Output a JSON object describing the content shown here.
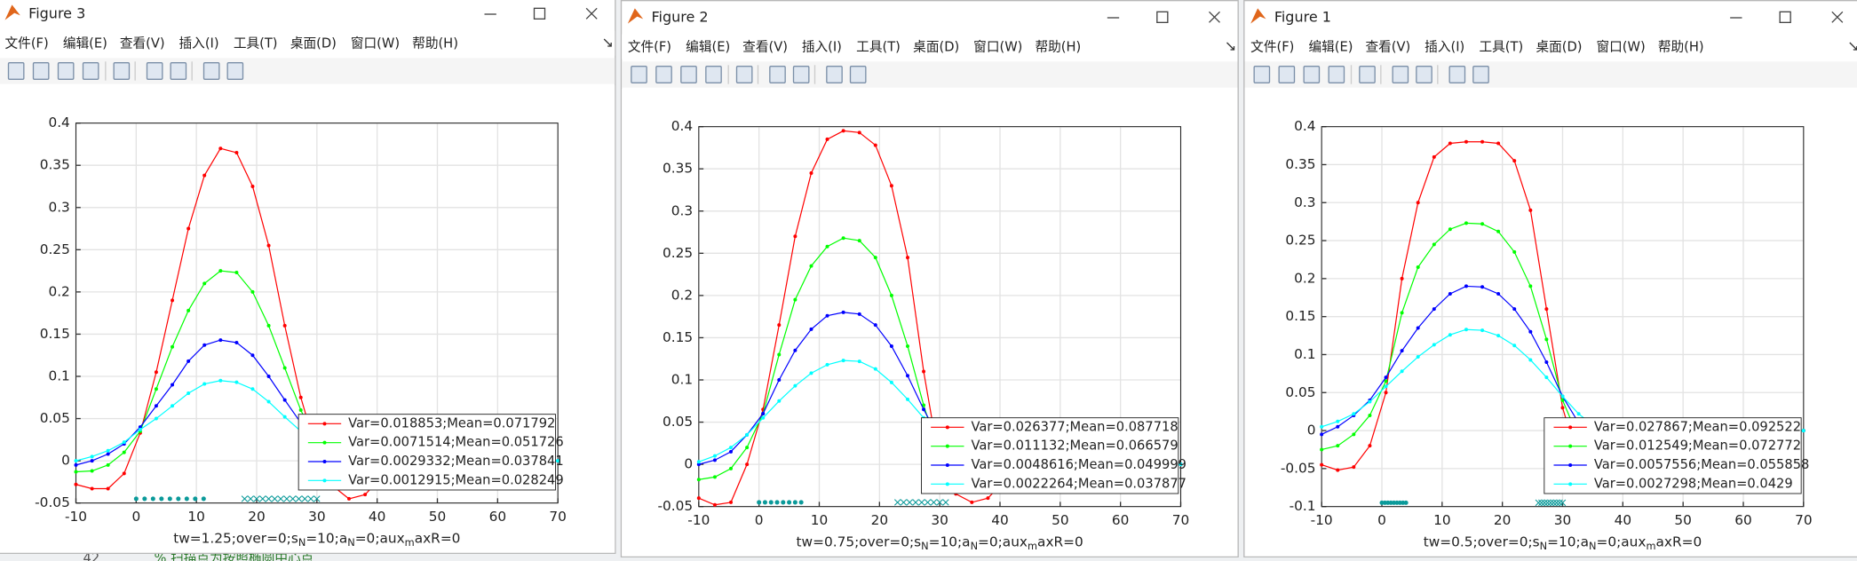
{
  "background": {
    "line_number": "42",
    "code": "% 扫描点为按照椭圆中心点"
  },
  "windows": [
    {
      "title": "Figure 3",
      "menu": [
        "文件(F)",
        "编辑(E)",
        "查看(V)",
        "插入(I)",
        "工具(T)",
        "桌面(D)",
        "窗口(W)",
        "帮助(H)"
      ]
    },
    {
      "title": "Figure 2",
      "menu": [
        "文件(F)",
        "编辑(E)",
        "查看(V)",
        "插入(I)",
        "工具(T)",
        "桌面(D)",
        "窗口(W)",
        "帮助(H)"
      ]
    },
    {
      "title": "Figure 1",
      "menu": [
        "文件(F)",
        "编辑(E)",
        "查看(V)",
        "插入(I)",
        "工具(T)",
        "桌面(D)",
        "窗口(W)",
        "帮助(H)"
      ]
    }
  ],
  "chart_data": [
    {
      "type": "line",
      "xlabel": [
        "tw=1.25;over=0;s",
        "N",
        "=10;a",
        "N",
        "=0;aux",
        "m",
        "axR=0"
      ],
      "xlim": [
        -10,
        70
      ],
      "ylim": [
        -0.05,
        0.4
      ],
      "xticks": [
        -10,
        0,
        10,
        20,
        30,
        40,
        50,
        60,
        70
      ],
      "yticks": [
        -0.05,
        0,
        0.05,
        0.1,
        0.15,
        0.2,
        0.25,
        0.3,
        0.35,
        0.4
      ],
      "grid": true,
      "legend": "lower right",
      "x": [
        -10,
        -7.33,
        -4.67,
        -2,
        0.67,
        3.33,
        6,
        8.67,
        11.33,
        14,
        16.67,
        19.33,
        22,
        24.67,
        27.33,
        30,
        32.67,
        35.33,
        38,
        40.67,
        43.33,
        46,
        48.67,
        51.33,
        54,
        56.67,
        59.33,
        62,
        64.67,
        67.33,
        70
      ],
      "series": [
        {
          "name": "Var=0.018853;Mean=0.071792",
          "color": "#ff0000",
          "marker": "point",
          "values": [
            -0.028,
            -0.033,
            -0.033,
            -0.015,
            0.033,
            0.105,
            0.19,
            0.275,
            0.338,
            0.37,
            0.365,
            0.325,
            0.255,
            0.16,
            0.075,
            0.01,
            -0.03,
            -0.045,
            -0.04,
            -0.02,
            0,
            0,
            0,
            0,
            0,
            0,
            0,
            0,
            0,
            0,
            0
          ]
        },
        {
          "name": "Var=0.0071514;Mean=0.051726",
          "color": "#00ff00",
          "marker": "point",
          "values": [
            -0.013,
            -0.012,
            -0.005,
            0.01,
            0.035,
            0.085,
            0.135,
            0.178,
            0.21,
            0.225,
            0.223,
            0.2,
            0.16,
            0.11,
            0.06,
            0.02,
            -0.01,
            -0.025,
            -0.025,
            -0.015,
            -0.005,
            0,
            0,
            0,
            0,
            0,
            0,
            0,
            0,
            0,
            0
          ]
        },
        {
          "name": "Var=0.0029332;Mean=0.037841",
          "color": "#0000ff",
          "marker": "point",
          "values": [
            -0.005,
            0,
            0.008,
            0.02,
            0.04,
            0.065,
            0.09,
            0.118,
            0.137,
            0.143,
            0.14,
            0.125,
            0.1,
            0.072,
            0.045,
            0.02,
            0.002,
            -0.008,
            -0.01,
            -0.007,
            -0.003,
            0,
            0,
            0,
            0,
            0,
            0,
            0,
            0,
            0,
            0
          ]
        },
        {
          "name": "Var=0.0012915;Mean=0.028249",
          "color": "#00ffff",
          "marker": "point",
          "values": [
            0,
            0.005,
            0.012,
            0.022,
            0.037,
            0.05,
            0.065,
            0.08,
            0.091,
            0.095,
            0.093,
            0.085,
            0.07,
            0.052,
            0.035,
            0.02,
            0.008,
            0,
            -0.003,
            -0.002,
            0,
            0,
            0,
            0,
            0,
            0,
            0,
            0,
            0,
            0,
            0
          ]
        },
        {
          "color": "#0b9a9a",
          "marker": "dot",
          "linestyle": "none",
          "x": [
            0,
            1.4,
            2.8,
            4.2,
            5.6,
            7,
            8.4,
            9.8,
            11.2
          ],
          "values": [
            -0.045,
            -0.045,
            -0.045,
            -0.045,
            -0.045,
            -0.045,
            -0.045,
            -0.045,
            -0.045
          ]
        },
        {
          "color": "#0b9a9a",
          "marker": "x",
          "linestyle": "none",
          "x": [
            18,
            19,
            20,
            21,
            22,
            23,
            24,
            25,
            26,
            27,
            28,
            29,
            30
          ],
          "values": [
            -0.045,
            -0.045,
            -0.045,
            -0.045,
            -0.045,
            -0.045,
            -0.045,
            -0.045,
            -0.045,
            -0.045,
            -0.045,
            -0.045,
            -0.045
          ]
        }
      ]
    },
    {
      "type": "line",
      "xlabel": [
        "tw=0.75;over=0;s",
        "N",
        "=10;a",
        "N",
        "=0;aux",
        "m",
        "axR=0"
      ],
      "xlim": [
        -10,
        70
      ],
      "ylim": [
        -0.05,
        0.4
      ],
      "xticks": [
        -10,
        0,
        10,
        20,
        30,
        40,
        50,
        60,
        70
      ],
      "yticks": [
        -0.05,
        0,
        0.05,
        0.1,
        0.15,
        0.2,
        0.25,
        0.3,
        0.35,
        0.4
      ],
      "grid": true,
      "legend": "lower right",
      "x": [
        -10,
        -7.33,
        -4.67,
        -2,
        0.67,
        3.33,
        6,
        8.67,
        11.33,
        14,
        16.67,
        19.33,
        22,
        24.67,
        27.33,
        30,
        32.67,
        35.33,
        38,
        40.67,
        43.33,
        46,
        48.67,
        51.33,
        54,
        56.67,
        59.33,
        62,
        64.67,
        67.33,
        70
      ],
      "series": [
        {
          "name": "Var=0.026377;Mean=0.087718",
          "color": "#ff0000",
          "marker": "point",
          "values": [
            -0.04,
            -0.048,
            -0.045,
            0,
            0.065,
            0.165,
            0.27,
            0.345,
            0.385,
            0.395,
            0.393,
            0.378,
            0.33,
            0.245,
            0.11,
            0,
            -0.035,
            -0.045,
            -0.04,
            -0.02,
            0,
            0,
            0,
            0,
            0,
            0,
            0,
            0,
            0,
            0,
            0
          ]
        },
        {
          "name": "Var=0.011132;Mean=0.066579",
          "color": "#00ff00",
          "marker": "point",
          "values": [
            -0.018,
            -0.015,
            -0.005,
            0.02,
            0.06,
            0.13,
            0.195,
            0.235,
            0.258,
            0.268,
            0.265,
            0.245,
            0.2,
            0.14,
            0.07,
            0.01,
            -0.02,
            -0.03,
            -0.028,
            -0.015,
            0,
            0,
            0,
            0,
            0,
            0,
            0,
            0,
            0,
            0,
            0
          ]
        },
        {
          "name": "Var=0.0048616;Mean=0.049999",
          "color": "#0000ff",
          "marker": "point",
          "values": [
            0,
            0.005,
            0.015,
            0.035,
            0.06,
            0.1,
            0.135,
            0.16,
            0.176,
            0.18,
            0.178,
            0.165,
            0.14,
            0.105,
            0.065,
            0.03,
            0.005,
            -0.008,
            -0.01,
            -0.005,
            0,
            0,
            0,
            0,
            0,
            0,
            0,
            0,
            0,
            0,
            0
          ]
        },
        {
          "name": "Var=0.0022264;Mean=0.037877",
          "color": "#00ffff",
          "marker": "point",
          "values": [
            0.003,
            0.01,
            0.02,
            0.035,
            0.055,
            0.075,
            0.093,
            0.108,
            0.118,
            0.123,
            0.122,
            0.113,
            0.097,
            0.077,
            0.055,
            0.033,
            0.015,
            0.003,
            -0.003,
            -0.003,
            0,
            0,
            0,
            0,
            0,
            0,
            0,
            0,
            0,
            0,
            0
          ]
        },
        {
          "color": "#0b9a9a",
          "marker": "dot",
          "linestyle": "none",
          "x": [
            0,
            1,
            2,
            3,
            4,
            5,
            6,
            7
          ],
          "values": [
            -0.045,
            -0.045,
            -0.045,
            -0.045,
            -0.045,
            -0.045,
            -0.045,
            -0.045
          ]
        },
        {
          "color": "#0b9a9a",
          "marker": "x",
          "linestyle": "none",
          "x": [
            23,
            24,
            25,
            26,
            27,
            28,
            29,
            30,
            31
          ],
          "values": [
            -0.045,
            -0.045,
            -0.045,
            -0.045,
            -0.045,
            -0.045,
            -0.045,
            -0.045,
            -0.045
          ]
        }
      ]
    },
    {
      "type": "line",
      "xlabel": [
        "tw=0.5;over=0;s",
        "N",
        "=10;a",
        "N",
        "=0;aux",
        "m",
        "axR=0"
      ],
      "xlim": [
        -10,
        70
      ],
      "ylim": [
        -0.1,
        0.4
      ],
      "xticks": [
        -10,
        0,
        10,
        20,
        30,
        40,
        50,
        60,
        70
      ],
      "yticks": [
        -0.1,
        -0.05,
        0,
        0.05,
        0.1,
        0.15,
        0.2,
        0.25,
        0.3,
        0.35,
        0.4
      ],
      "grid": true,
      "legend": "lower right",
      "x": [
        -10,
        -7.33,
        -4.67,
        -2,
        0.67,
        3.33,
        6,
        8.67,
        11.33,
        14,
        16.67,
        19.33,
        22,
        24.67,
        27.33,
        30,
        32.67,
        35.33,
        38,
        40.67,
        43.33,
        46,
        48.67,
        51.33,
        54,
        56.67,
        59.33,
        62,
        64.67,
        67.33,
        70
      ],
      "series": [
        {
          "name": "Var=0.027867;Mean=0.092522",
          "color": "#ff0000",
          "marker": "point",
          "values": [
            -0.045,
            -0.052,
            -0.048,
            -0.02,
            0.05,
            0.2,
            0.3,
            0.36,
            0.378,
            0.38,
            0.38,
            0.378,
            0.355,
            0.29,
            0.16,
            0.03,
            -0.04,
            -0.055,
            -0.05,
            -0.03,
            0,
            0,
            0,
            0,
            0,
            0,
            0,
            0,
            0,
            0,
            0
          ]
        },
        {
          "name": "Var=0.012549;Mean=0.072772",
          "color": "#00ff00",
          "marker": "point",
          "values": [
            -0.025,
            -0.02,
            -0.005,
            0.02,
            0.065,
            0.155,
            0.215,
            0.245,
            0.265,
            0.273,
            0.272,
            0.262,
            0.235,
            0.19,
            0.12,
            0.04,
            -0.01,
            -0.03,
            -0.03,
            -0.02,
            0,
            0,
            0,
            0,
            0,
            0,
            0,
            0,
            0,
            0,
            0
          ]
        },
        {
          "name": "Var=0.0057556;Mean=0.055858",
          "color": "#0000ff",
          "marker": "point",
          "values": [
            -0.005,
            0.005,
            0.02,
            0.04,
            0.07,
            0.105,
            0.135,
            0.16,
            0.18,
            0.19,
            0.189,
            0.18,
            0.16,
            0.13,
            0.09,
            0.045,
            0.01,
            -0.005,
            -0.01,
            -0.005,
            0,
            0,
            0,
            0,
            0,
            0,
            0,
            0,
            0,
            0,
            0
          ]
        },
        {
          "name": "Var=0.0027298;Mean=0.0429",
          "color": "#00ffff",
          "marker": "point",
          "values": [
            0.005,
            0.012,
            0.022,
            0.038,
            0.058,
            0.078,
            0.097,
            0.113,
            0.126,
            0.133,
            0.132,
            0.125,
            0.112,
            0.093,
            0.07,
            0.045,
            0.022,
            0.005,
            -0.003,
            -0.003,
            0,
            0,
            0,
            0,
            0,
            0,
            0,
            0,
            0,
            0,
            0
          ]
        },
        {
          "color": "#0b9a9a",
          "marker": "dot",
          "linestyle": "none",
          "x": [
            0,
            0.5,
            1,
            1.5,
            2,
            2.5,
            3,
            3.5,
            4
          ],
          "values": [
            -0.095,
            -0.095,
            -0.095,
            -0.095,
            -0.095,
            -0.095,
            -0.095,
            -0.095,
            -0.095
          ]
        },
        {
          "color": "#0b9a9a",
          "marker": "x",
          "linestyle": "none",
          "x": [
            26,
            26.5,
            27,
            27.5,
            28,
            28.5,
            29,
            29.5,
            30
          ],
          "values": [
            -0.095,
            -0.095,
            -0.095,
            -0.095,
            -0.095,
            -0.095,
            -0.095,
            -0.095,
            -0.095
          ]
        }
      ]
    }
  ]
}
